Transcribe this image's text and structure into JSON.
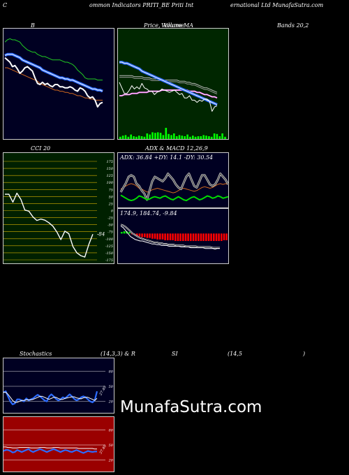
{
  "header": {
    "left": "C",
    "center_a": "ommon  Indicators PRITI_BE Priti  Int",
    "center_b": "ernational Ltd MunafaSutra.com"
  },
  "titles": {
    "bollinger": "B",
    "price_a": "Price,",
    "price_b": "Volume",
    "price_c": "MA",
    "price_overlay": "Volume",
    "bands": "Bands 20,2",
    "cci": "CCI 20",
    "adx": "ADX  & MACD 12,26,9",
    "stoch_a": "Stochastics",
    "stoch_b": "(14,3,3) & R",
    "stoch_c": "SI",
    "stoch_d": "(14,5",
    "stoch_e": ")"
  },
  "adx_text": "ADX: 36.84  +DY: 14.1 -DY: 30.54",
  "macd_text": "174.9,  184.74,  -9.84",
  "cci_last": "-84",
  "stoch_ticks": [
    "80",
    "50",
    "20"
  ],
  "rsi_ticks": [
    "80",
    "50",
    "20"
  ],
  "stoch_last_label": "27.40",
  "rsi_last_label": "37.40",
  "watermark": "MunafaSutra.com",
  "colors": {
    "panel_bg": "#000022",
    "ma_bg": "#002600",
    "cci_bg": "#002000",
    "rsi_bg": "#9a0000",
    "accent_blue": "#2c6bff",
    "volume_green": "#00ff00",
    "macd_red": "#ff0000"
  },
  "chart_data": [
    {
      "type": "line",
      "panel": "bollinger",
      "x": [
        1,
        2,
        3,
        4,
        5,
        6,
        7,
        8,
        9,
        10,
        11,
        12,
        13,
        14,
        15,
        16,
        17,
        18,
        19,
        20,
        21,
        22,
        23,
        24,
        25,
        26,
        27,
        28,
        29,
        30,
        31,
        32,
        33,
        34,
        35,
        36,
        37,
        38,
        39,
        40
      ],
      "series": [
        {
          "role": "upper",
          "values": [
            0.88,
            0.9,
            0.91,
            0.9,
            0.9,
            0.89,
            0.88,
            0.85,
            0.83,
            0.81,
            0.8,
            0.79,
            0.79,
            0.77,
            0.76,
            0.75,
            0.75,
            0.74,
            0.73,
            0.72,
            0.72,
            0.72,
            0.72,
            0.71,
            0.7,
            0.7,
            0.69,
            0.68,
            0.66,
            0.63,
            0.61,
            0.59,
            0.56,
            0.55,
            0.55,
            0.55,
            0.55,
            0.54,
            0.54,
            0.54
          ]
        },
        {
          "role": "middle",
          "values": [
            0.76,
            0.77,
            0.77,
            0.77,
            0.76,
            0.75,
            0.74,
            0.72,
            0.71,
            0.7,
            0.69,
            0.68,
            0.67,
            0.66,
            0.65,
            0.63,
            0.62,
            0.61,
            0.6,
            0.59,
            0.58,
            0.57,
            0.56,
            0.56,
            0.55,
            0.55,
            0.54,
            0.54,
            0.53,
            0.52,
            0.51,
            0.5,
            0.49,
            0.48,
            0.47,
            0.46,
            0.46,
            0.45,
            0.45,
            0.44
          ]
        },
        {
          "role": "lower",
          "values": [
            0.65,
            0.65,
            0.64,
            0.63,
            0.62,
            0.61,
            0.6,
            0.59,
            0.58,
            0.57,
            0.56,
            0.55,
            0.54,
            0.53,
            0.51,
            0.5,
            0.49,
            0.48,
            0.47,
            0.46,
            0.45,
            0.45,
            0.44,
            0.44,
            0.43,
            0.43,
            0.42,
            0.42,
            0.41,
            0.4,
            0.4,
            0.39,
            0.38,
            0.38,
            0.37,
            0.37,
            0.36,
            0.36,
            0.36,
            0.36
          ]
        },
        {
          "role": "price",
          "values": [
            0.74,
            0.72,
            0.7,
            0.66,
            0.67,
            0.64,
            0.6,
            0.62,
            0.65,
            0.66,
            0.64,
            0.62,
            0.56,
            0.51,
            0.5,
            0.52,
            0.5,
            0.51,
            0.49,
            0.48,
            0.5,
            0.5,
            0.48,
            0.48,
            0.47,
            0.47,
            0.48,
            0.47,
            0.45,
            0.44,
            0.47,
            0.46,
            0.44,
            0.4,
            0.38,
            0.39,
            0.36,
            0.3,
            0.33,
            0.34
          ]
        }
      ]
    },
    {
      "type": "line",
      "panel": "price-volume-ma",
      "x": [
        1,
        2,
        3,
        4,
        5,
        6,
        7,
        8,
        9,
        10,
        11,
        12,
        13,
        14,
        15,
        16,
        17,
        18,
        19,
        20,
        21,
        22,
        23,
        24,
        25,
        26,
        27,
        28,
        29,
        30,
        31,
        32,
        33,
        34,
        35,
        36,
        37,
        38,
        39,
        40
      ],
      "series": [
        {
          "role": "ma-long",
          "values": [
            0.7,
            0.7,
            0.69,
            0.69,
            0.68,
            0.67,
            0.66,
            0.65,
            0.64,
            0.62,
            0.61,
            0.6,
            0.59,
            0.58,
            0.57,
            0.56,
            0.55,
            0.54,
            0.53,
            0.52,
            0.51,
            0.5,
            0.49,
            0.48,
            0.47,
            0.46,
            0.45,
            0.44,
            0.43,
            0.42,
            0.41,
            0.4,
            0.39,
            0.38,
            0.37,
            0.36,
            0.35,
            0.34,
            0.33,
            0.32
          ]
        },
        {
          "role": "ma-mid",
          "values": [
            0.4,
            0.4,
            0.41,
            0.41,
            0.41,
            0.42,
            0.42,
            0.42,
            0.43,
            0.43,
            0.43,
            0.43,
            0.44,
            0.44,
            0.44,
            0.44,
            0.44,
            0.45,
            0.45,
            0.45,
            0.45,
            0.45,
            0.45,
            0.45,
            0.45,
            0.45,
            0.45,
            0.45,
            0.44,
            0.44,
            0.44,
            0.43,
            0.43,
            0.42,
            0.41,
            0.41,
            0.4,
            0.39,
            0.39,
            0.38
          ]
        },
        {
          "role": "ma-gray",
          "values": [
            0.58,
            0.58,
            0.58,
            0.58,
            0.58,
            0.58,
            0.57,
            0.57,
            0.57,
            0.57,
            0.56,
            0.56,
            0.56,
            0.55,
            0.55,
            0.55,
            0.55,
            0.55,
            0.54,
            0.54,
            0.54,
            0.54,
            0.54,
            0.54,
            0.53,
            0.53,
            0.53,
            0.52,
            0.52,
            0.51,
            0.51,
            0.5,
            0.49,
            0.48,
            0.47,
            0.47,
            0.46,
            0.45,
            0.44,
            0.43
          ]
        },
        {
          "role": "price",
          "values": [
            0.52,
            0.47,
            0.42,
            0.42,
            0.45,
            0.49,
            0.46,
            0.48,
            0.46,
            0.51,
            0.47,
            0.46,
            0.44,
            0.44,
            0.41,
            0.43,
            0.44,
            0.46,
            0.45,
            0.44,
            0.43,
            0.44,
            0.45,
            0.43,
            0.41,
            0.42,
            0.38,
            0.38,
            0.4,
            0.36,
            0.36,
            0.34,
            0.36,
            0.35,
            0.37,
            0.37,
            0.35,
            0.26,
            0.3,
            0.31
          ]
        }
      ],
      "volume": [
        0.2,
        0.3,
        0.35,
        0.2,
        0.4,
        0.25,
        0.2,
        0.3,
        0.25,
        0.2,
        0.5,
        0.4,
        0.6,
        0.55,
        0.6,
        0.55,
        0.35,
        1.0,
        0.45,
        0.35,
        0.5,
        0.25,
        0.35,
        0.3,
        0.25,
        0.4,
        0.2,
        0.3,
        0.2,
        0.25,
        0.25,
        0.35,
        0.3,
        0.25,
        0.2,
        0.5,
        0.45,
        0.25,
        0.5,
        0.2
      ]
    },
    {
      "type": "line",
      "panel": "cci",
      "x": [
        1,
        2,
        3,
        4,
        5,
        6,
        7,
        8,
        9,
        10,
        11,
        12,
        13,
        14,
        15,
        16,
        17,
        18,
        19,
        20,
        21,
        22,
        23
      ],
      "yticks": [
        175,
        150,
        125,
        100,
        75,
        50,
        25,
        0,
        -25,
        -50,
        -75,
        -100,
        -125,
        -150,
        -175
      ],
      "ylim": [
        -175,
        175
      ],
      "values": [
        58,
        58,
        30,
        62,
        40,
        2,
        -2,
        -22,
        -35,
        -30,
        -34,
        -43,
        -55,
        -76,
        -103,
        -73,
        -82,
        -127,
        -150,
        -160,
        -165,
        -120,
        -84
      ]
    },
    {
      "type": "line",
      "panel": "adx",
      "ylim": [
        0,
        60
      ],
      "series": [
        {
          "role": "adx",
          "values": [
            20,
            26,
            32,
            40,
            42,
            40,
            31,
            28,
            22,
            18,
            10,
            22,
            34,
            40,
            38,
            36,
            34,
            38,
            44,
            40,
            36,
            30,
            26,
            24,
            32,
            40,
            44,
            36,
            28,
            26,
            34,
            42,
            42,
            36,
            30,
            28,
            30,
            36,
            44,
            40,
            36,
            30
          ]
        },
        {
          "role": "+DY",
          "values": [
            16,
            14,
            12,
            10,
            9,
            10,
            12,
            15,
            14,
            12,
            10,
            11,
            13,
            14,
            13,
            12,
            14,
            15,
            13,
            11,
            10,
            12,
            14,
            12,
            10,
            9,
            11,
            13,
            14,
            12,
            10,
            11,
            13,
            15,
            14,
            12,
            13,
            15,
            14,
            12,
            13,
            14
          ]
        },
        {
          "role": "-DY",
          "values": [
            24,
            26,
            28,
            30,
            31,
            30,
            28,
            25,
            24,
            22,
            20,
            21,
            23,
            24,
            25,
            24,
            23,
            22,
            21,
            20,
            19,
            20,
            22,
            24,
            25,
            24,
            23,
            22,
            21,
            22,
            24,
            26,
            27,
            26,
            25,
            26,
            28,
            30,
            31,
            30,
            31,
            30
          ]
        }
      ]
    },
    {
      "type": "line",
      "panel": "macd",
      "ylim": [
        -40,
        20
      ],
      "macd": [
        10,
        8,
        4,
        0,
        -4,
        -6,
        -8,
        -9,
        -10,
        -10,
        -11,
        -12,
        -13,
        -14,
        -14,
        -15,
        -15,
        -16,
        -16,
        -16,
        -17,
        -17,
        -17,
        -17,
        -17,
        -18,
        -18,
        -18,
        -18,
        -19,
        -19,
        -19,
        -19,
        -19,
        -19,
        -20,
        -20,
        -20,
        -20,
        -21,
        -20,
        -20
      ],
      "signal": [
        12,
        11,
        9,
        6,
        3,
        0,
        -2,
        -4,
        -6,
        -7,
        -8,
        -9,
        -10,
        -11,
        -12,
        -12,
        -13,
        -13,
        -14,
        -14,
        -15,
        -15,
        -15,
        -16,
        -16,
        -16,
        -16,
        -17,
        -17,
        -17,
        -17,
        -17,
        -18,
        -18,
        -18,
        -18,
        -18,
        -18,
        -19,
        -19,
        -19,
        -19
      ],
      "histogram": [
        2,
        3,
        3,
        2,
        -1,
        -2,
        -3,
        -4,
        -5,
        -5,
        -6,
        -6,
        -7,
        -7,
        -8,
        -8,
        -8,
        -9,
        -9,
        -9,
        -9,
        -10,
        -10,
        -10,
        -10,
        -10,
        -10,
        -10,
        -10,
        -10,
        -10,
        -10,
        -10,
        -10,
        -10,
        -10,
        -10,
        -10,
        -10,
        -10,
        -9,
        -9
      ]
    },
    {
      "type": "line",
      "panel": "stochastics",
      "ylim": [
        0,
        100
      ],
      "yticks": [
        80,
        50,
        20
      ],
      "series": [
        {
          "role": "%K",
          "values": [
            38,
            40,
            30,
            20,
            14,
            16,
            24,
            24,
            22,
            20,
            26,
            22,
            24,
            26,
            30,
            33,
            30,
            26,
            22,
            20,
            30,
            34,
            30,
            25,
            22,
            24,
            28,
            26,
            30,
            34,
            30,
            25,
            22,
            24,
            28,
            30,
            28,
            24,
            20,
            18,
            22,
            40
          ]
        },
        {
          "role": "%D",
          "values": [
            38,
            38,
            34,
            28,
            22,
            18,
            18,
            20,
            22,
            22,
            23,
            23,
            23,
            24,
            26,
            28,
            30,
            30,
            28,
            26,
            24,
            26,
            28,
            28,
            26,
            24,
            24,
            26,
            27,
            28,
            29,
            29,
            27,
            26,
            25,
            27,
            28,
            28,
            26,
            24,
            22,
            26
          ]
        }
      ]
    },
    {
      "type": "line",
      "panel": "rsi",
      "ylim": [
        0,
        100
      ],
      "yticks": [
        80,
        50,
        20
      ],
      "series": [
        {
          "role": "rsi",
          "values": [
            38,
            40,
            40,
            38,
            35,
            36,
            40,
            38,
            36,
            38,
            40,
            42,
            38,
            36,
            38,
            40,
            42,
            40,
            38,
            36,
            38,
            40,
            42,
            40,
            38,
            36,
            38,
            40,
            39,
            37,
            36,
            38,
            40,
            38,
            36,
            34,
            36,
            38,
            37,
            36,
            37,
            37
          ]
        },
        {
          "role": "rsi-smooth",
          "values": [
            46,
            46,
            45,
            45,
            44,
            44,
            44,
            45,
            45,
            45,
            45,
            45,
            44,
            44,
            44,
            44,
            45,
            45,
            45,
            44,
            44,
            44,
            45,
            45,
            45,
            44,
            44,
            44,
            44,
            44,
            44,
            44,
            44,
            43,
            43,
            43,
            43,
            43,
            43,
            43,
            42,
            42
          ]
        }
      ]
    }
  ]
}
